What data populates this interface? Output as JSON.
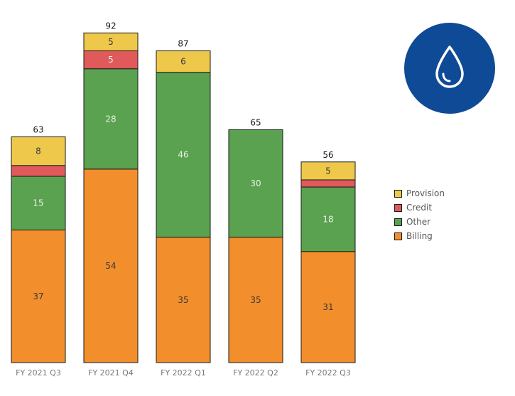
{
  "badge_icon": "water-drop-icon",
  "colors": {
    "Provision": "#eec84a",
    "Credit": "#e05a5c",
    "Other": "#5aa150",
    "Billing": "#f28e2c",
    "badge": "#0f4a96"
  },
  "legend": [
    "Provision",
    "Credit",
    "Other",
    "Billing"
  ],
  "chart_data": {
    "type": "bar",
    "stacked": true,
    "categories": [
      "FY 2021 Q3",
      "FY 2021 Q4",
      "FY 2022 Q1",
      "FY 2022 Q2",
      "FY 2022 Q3"
    ],
    "totals": [
      63,
      92,
      87,
      65,
      56
    ],
    "series": [
      {
        "name": "Billing",
        "values": [
          37,
          54,
          35,
          35,
          31
        ],
        "labels": [
          "37",
          "54",
          "35",
          "35",
          "31"
        ]
      },
      {
        "name": "Other",
        "values": [
          15,
          28,
          46,
          30,
          18
        ],
        "labels": [
          "15",
          "28",
          "46",
          "30",
          "18"
        ]
      },
      {
        "name": "Credit",
        "values": [
          3,
          5,
          0,
          0,
          2
        ],
        "labels": [
          "",
          "5",
          "",
          "",
          ""
        ]
      },
      {
        "name": "Provision",
        "values": [
          8,
          5,
          6,
          0,
          5
        ],
        "labels": [
          "8",
          "5",
          "6",
          "",
          "5"
        ]
      }
    ],
    "ylim": [
      0,
      100
    ],
    "grid": false,
    "legend_position": "right"
  }
}
